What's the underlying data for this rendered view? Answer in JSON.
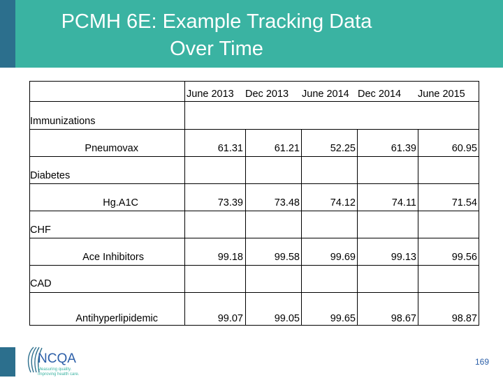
{
  "slide": {
    "title_line1": "PCMH 6E: Example Tracking Data",
    "title_line2": "Over Time",
    "page_number": "169",
    "logo_text": "NCQA",
    "logo_tagline_1": "Measuring quality.",
    "logo_tagline_2": "Improving health care."
  },
  "table": {
    "columns": [
      "June 2013",
      "Dec 2013",
      "June 2014",
      "Dec 2014",
      "June 2015"
    ],
    "sections": [
      {
        "label": "Immunizations",
        "measure": "Pneumovax",
        "values": [
          "61.31",
          "61.21",
          "52.25",
          "61.39",
          "60.95"
        ]
      },
      {
        "label": "Diabetes",
        "measure": "Hg.A1C",
        "values": [
          "73.39",
          "73.48",
          "74.12",
          "74.11",
          "71.54"
        ]
      },
      {
        "label": "CHF",
        "measure": "Ace Inhibitors",
        "values": [
          "99.18",
          "99.58",
          "99.69",
          "99.13",
          "99.56"
        ]
      },
      {
        "label": "CAD",
        "measure": "Antihyperlipidemic",
        "values": [
          "99.07",
          "99.05",
          "99.65",
          "98.67",
          "98.87"
        ]
      }
    ]
  },
  "colors": {
    "title_bar": "#3ab3a2",
    "accent": "#2c6f8d",
    "page_number": "#2c5fa8"
  }
}
